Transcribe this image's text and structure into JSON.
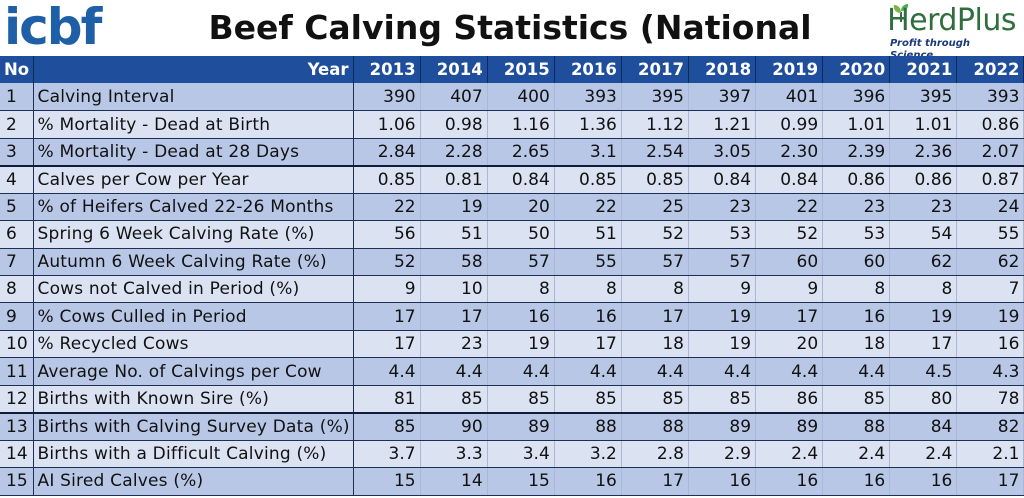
{
  "header": {
    "logo_left_text": "icbf",
    "title": "Beef Calving Statistics (National Averages)",
    "logo_right_name": "HerdPlus",
    "logo_right_tagline": "Profit through Science"
  },
  "table": {
    "col_no": "No",
    "col_year": "Year",
    "years": [
      "2013",
      "2014",
      "2015",
      "2016",
      "2017",
      "2018",
      "2019",
      "2020",
      "2021",
      "2022"
    ],
    "rows": [
      {
        "no": "1",
        "label": "Calving Interval",
        "values": [
          "390",
          "407",
          "400",
          "393",
          "395",
          "397",
          "401",
          "396",
          "395",
          "393"
        ]
      },
      {
        "no": "2",
        "label": "% Mortality - Dead at Birth",
        "values": [
          "1.06",
          "0.98",
          "1.16",
          "1.36",
          "1.12",
          "1.21",
          "0.99",
          "1.01",
          "1.01",
          "0.86"
        ]
      },
      {
        "no": "3",
        "label": "% Mortality - Dead at 28 Days",
        "values": [
          "2.84",
          "2.28",
          "2.65",
          "3.1",
          "2.54",
          "3.05",
          "2.30",
          "2.39",
          "2.36",
          "2.07"
        ]
      },
      {
        "no": "4",
        "label": "Calves per Cow per Year",
        "values": [
          "0.85",
          "0.81",
          "0.84",
          "0.85",
          "0.85",
          "0.84",
          "0.84",
          "0.86",
          "0.86",
          "0.87"
        ]
      },
      {
        "no": "5",
        "label": "% of Heifers Calved 22-26 Months",
        "values": [
          "22",
          "19",
          "20",
          "22",
          "25",
          "23",
          "22",
          "23",
          "23",
          "24"
        ]
      },
      {
        "no": "6",
        "label": "Spring 6 Week Calving Rate (%)",
        "values": [
          "56",
          "51",
          "50",
          "51",
          "52",
          "53",
          "52",
          "53",
          "54",
          "55"
        ]
      },
      {
        "no": "7",
        "label": "Autumn 6 Week Calving Rate (%)",
        "values": [
          "52",
          "58",
          "57",
          "55",
          "57",
          "57",
          "60",
          "60",
          "62",
          "62"
        ]
      },
      {
        "no": "8",
        "label": "Cows not Calved in Period (%)",
        "values": [
          "9",
          "10",
          "8",
          "8",
          "8",
          "9",
          "9",
          "8",
          "8",
          "7"
        ]
      },
      {
        "no": "9",
        "label": "% Cows Culled in Period",
        "values": [
          "17",
          "17",
          "16",
          "16",
          "17",
          "19",
          "17",
          "16",
          "19",
          "19"
        ]
      },
      {
        "no": "10",
        "label": "% Recycled Cows",
        "values": [
          "17",
          "23",
          "19",
          "17",
          "18",
          "19",
          "20",
          "18",
          "17",
          "16"
        ]
      },
      {
        "no": "11",
        "label": "Average No. of Calvings per Cow",
        "values": [
          "4.4",
          "4.4",
          "4.4",
          "4.4",
          "4.4",
          "4.4",
          "4.4",
          "4.4",
          "4.5",
          "4.3"
        ]
      },
      {
        "no": "12",
        "label": "Births with Known Sire (%)",
        "values": [
          "81",
          "85",
          "85",
          "85",
          "85",
          "85",
          "86",
          "85",
          "80",
          "78"
        ]
      },
      {
        "no": "13",
        "label": "Births with Calving Survey Data (%)",
        "values": [
          "85",
          "90",
          "89",
          "88",
          "88",
          "89",
          "89",
          "88",
          "84",
          "82"
        ]
      },
      {
        "no": "14",
        "label": "Births with a Difficult Calving (%)",
        "values": [
          "3.7",
          "3.3",
          "3.4",
          "3.2",
          "2.8",
          "2.9",
          "2.4",
          "2.4",
          "2.4",
          "2.1"
        ]
      },
      {
        "no": "15",
        "label": "AI Sired Calves (%)",
        "values": [
          "15",
          "14",
          "15",
          "16",
          "17",
          "16",
          "16",
          "16",
          "16",
          "17"
        ]
      }
    ]
  },
  "colors": {
    "header_bg": "#1f4e9c",
    "row_dark": "#b8c7e6",
    "row_light": "#dbe3f3",
    "icbf_blue": "#1f5fa8",
    "herdplus_green": "#2f6f3e"
  }
}
